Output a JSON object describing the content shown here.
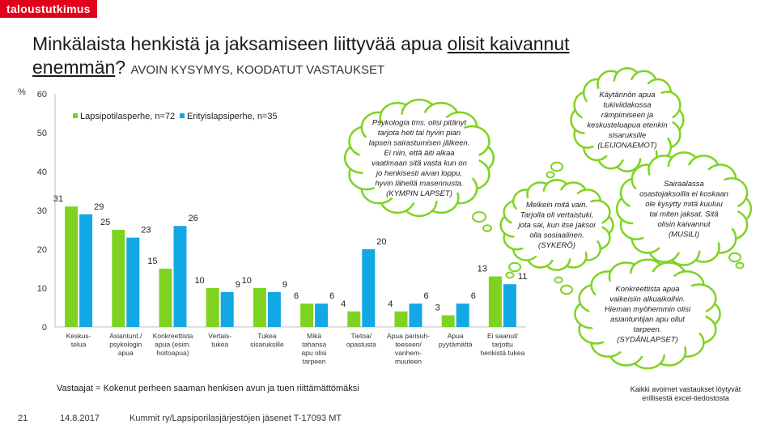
{
  "brand": "taloustutkimus",
  "title": {
    "line1_pre": "Minkälaista henkistä ja jaksamiseen liittyvää apua ",
    "line1_underlined": "olisit kaivannut",
    "line2_underlined": "enemmän",
    "line2_rest": "? ",
    "subtitle": "AVOIN KYSYMYS, KOODATUT VASTAUKSET"
  },
  "unit_label": "%",
  "chart_data": {
    "type": "bar",
    "ylim": [
      0,
      60
    ],
    "yticks": [
      "0",
      "10",
      "20",
      "30",
      "40",
      "50",
      "60"
    ],
    "grid": false,
    "legend_position": "top-left",
    "categories": [
      [
        "Keskus-",
        "telua"
      ],
      [
        "Asiantunt./",
        "psykologin",
        "apua"
      ],
      [
        "Konkreettista",
        "apua (esim.",
        "hoitoapua)"
      ],
      [
        "Vertais-",
        "tukea"
      ],
      [
        "Tukea",
        "sisaruksille"
      ],
      [
        "Mikä",
        "tahansa",
        "apu olisi",
        "tarpeen"
      ],
      [
        "Tietoa/",
        "opastusta"
      ],
      [
        "Apua parisuh-",
        "teeseen/",
        "vanhem-",
        "muuteen"
      ],
      [
        "Apua",
        "pyytämättä"
      ],
      [
        "Ei saanut/",
        "tarjottu",
        "henkistä tukea"
      ]
    ],
    "series": [
      {
        "name": "Lapsipotilasperhe, n=72",
        "color": "#7ed321",
        "values": [
          31,
          25,
          15,
          10,
          10,
          6,
          4,
          4,
          3,
          13
        ]
      },
      {
        "name": "Erityislapsiperhe, n=35",
        "color": "#12a8e6",
        "values": [
          29,
          23,
          26,
          9,
          9,
          6,
          20,
          6,
          6,
          11
        ]
      }
    ]
  },
  "bubbles": [
    {
      "lines": [
        "Psykologia tms. olisi pitänyt",
        "tarjota heti tai hyvin pian",
        "lapsen sairastumisen jälkeen.",
        "Ei niin, että äiti alkaa",
        "vaatimaan sitä vasta kun on",
        "jo henkisesti aivan loppu,",
        "hyvin lähellä masennusta.",
        "(KYMPIN LAPSET)"
      ]
    },
    {
      "lines": [
        "Käytännön apua",
        "tukiviidakossa",
        "rämpimiseen ja",
        "keskusteluapua etenkin",
        "sisaruksille",
        "(LEIJONAEMOT)"
      ]
    },
    {
      "lines": [
        "Melkein mitä vain.",
        "Tarjolla oli vertaistuki,",
        "jota sai, kun itse jaksoi",
        "olla sosiaalinen.",
        "(SYKERÖ)"
      ]
    },
    {
      "lines": [
        "Sairaalassa",
        "osastojaksoilla ei koskaan",
        "ole kysytty mitä kuuluu",
        "tai miten jaksat. Sitä",
        "olisin kaivannut",
        "(MUSILI)"
      ]
    },
    {
      "lines": [
        "Konkreettista apua",
        "vaikeisiin alkuaikoihin.",
        "Hieman myöhemmin olisi",
        "asiantuntijan apu ollut",
        "tarpeen.",
        "(SYDÄNLAPSET)"
      ]
    }
  ],
  "footer_note": "Vastaajat = Kokenut perheen saaman henkisen avun ja tuen riittämättömäksi",
  "side_note": "Kaikki avoimet vastaukset löytyvät erillisestä excel-tiedostosta",
  "footer": {
    "page": "21",
    "date": "14.8.2017",
    "org": "Kummit ry/Lapsiporilasjärjestöjen jäsenet T-17093 MT"
  }
}
